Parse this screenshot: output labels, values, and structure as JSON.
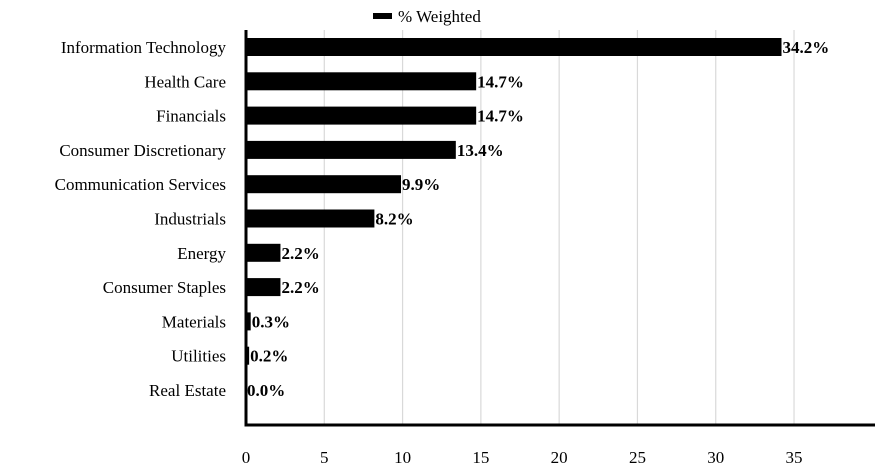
{
  "chart_data": {
    "type": "bar",
    "orientation": "horizontal",
    "categories": [
      "Information Technology",
      "Health Care",
      "Financials",
      "Consumer Discretionary",
      "Communication Services",
      "Industrials",
      "Energy",
      "Consumer Staples",
      "Materials",
      "Utilities",
      "Real Estate"
    ],
    "series": [
      {
        "name": "% Weighted",
        "values": [
          34.2,
          14.7,
          14.7,
          13.4,
          9.9,
          8.2,
          2.2,
          2.2,
          0.3,
          0.2,
          0.0
        ],
        "data_labels": [
          "34.2%",
          "14.7%",
          "14.7%",
          "13.4%",
          "9.9%",
          "8.2%",
          "2.2%",
          "2.2%",
          "0.3%",
          "0.2%",
          "0.0%"
        ],
        "color": "#000000"
      }
    ],
    "x_ticks": [
      0,
      5,
      10,
      15,
      20,
      25,
      30,
      35
    ],
    "xlim": [
      0,
      38
    ],
    "legend_position": "top-center",
    "grid": "vertical",
    "grid_color": "#d9d9d9",
    "title": "",
    "xlabel": "",
    "ylabel": ""
  }
}
